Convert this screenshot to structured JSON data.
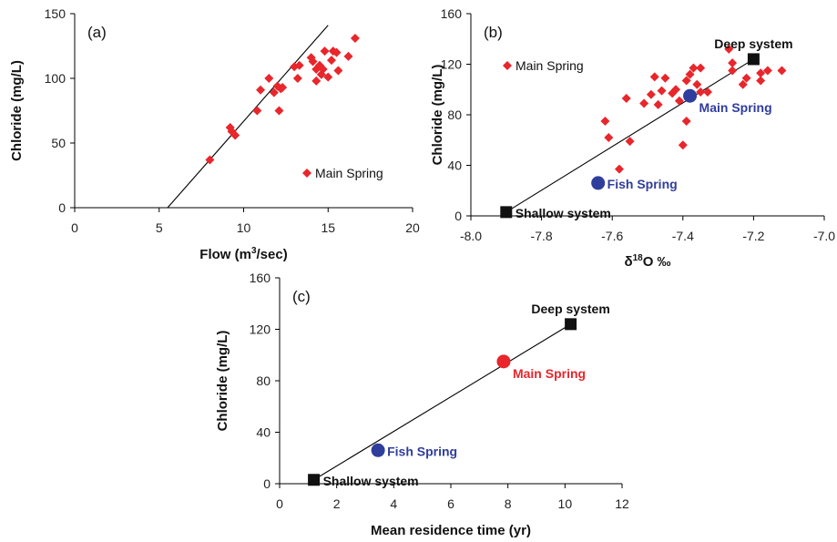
{
  "colors": {
    "red": "#e8262b",
    "blue": "#2f3d9c",
    "black": "#111111"
  },
  "chart_data": [
    {
      "id": "a",
      "type": "scatter",
      "panel_label": "(a)",
      "xlabel_base": "Flow (m",
      "xlabel_sup": "3",
      "xlabel_end": "/sec)",
      "ylabel": "Chloride (mg/L)",
      "xlim": [
        0,
        20
      ],
      "ylim": [
        0,
        150
      ],
      "xticks": [
        0,
        5,
        10,
        15,
        20
      ],
      "yticks": [
        0,
        50,
        100,
        150
      ],
      "grid": false,
      "legend": {
        "label": "Main Spring",
        "position": "lower-right"
      },
      "series": [
        {
          "name": "Main Spring",
          "marker": "diamond",
          "color": "#e8262b",
          "points": [
            [
              8.0,
              37
            ],
            [
              9.2,
              62
            ],
            [
              9.3,
              59
            ],
            [
              9.5,
              56
            ],
            [
              10.8,
              75
            ],
            [
              11.0,
              91
            ],
            [
              11.5,
              100
            ],
            [
              11.8,
              89
            ],
            [
              12.0,
              94
            ],
            [
              12.1,
              75
            ],
            [
              12.2,
              92
            ],
            [
              12.3,
              93
            ],
            [
              13.0,
              109
            ],
            [
              13.2,
              100
            ],
            [
              13.3,
              110
            ],
            [
              14.0,
              116
            ],
            [
              14.1,
              113
            ],
            [
              14.3,
              107
            ],
            [
              14.3,
              98
            ],
            [
              14.5,
              110
            ],
            [
              14.6,
              103
            ],
            [
              14.7,
              107
            ],
            [
              14.8,
              121
            ],
            [
              15.0,
              101
            ],
            [
              15.2,
              114
            ],
            [
              15.3,
              121
            ],
            [
              15.5,
              120
            ],
            [
              15.6,
              106
            ],
            [
              16.2,
              117
            ],
            [
              16.6,
              131
            ]
          ]
        }
      ],
      "fit_line": [
        [
          5.5,
          0
        ],
        [
          15.0,
          141
        ]
      ]
    },
    {
      "id": "b",
      "type": "scatter",
      "panel_label": "(b)",
      "xlabel_pre": "δ",
      "xlabel_sup": "18",
      "xlabel_end": "O ‰",
      "ylabel": "Chloride (mg/L)",
      "xlim": [
        -8.0,
        -7.0
      ],
      "ylim": [
        0,
        160
      ],
      "xticks": [
        "-8.0",
        "-7.8",
        "-7.6",
        "-7.4",
        "-7.2",
        "-7.0"
      ],
      "xtick_values": [
        -8.0,
        -7.8,
        -7.6,
        -7.4,
        -7.2,
        -7.0
      ],
      "yticks": [
        0,
        40,
        80,
        120,
        160
      ],
      "grid": false,
      "legend": {
        "label": "Main Spring",
        "position": "top-left"
      },
      "series": [
        {
          "name": "Main Spring",
          "marker": "diamond",
          "color": "#e8262b",
          "points": [
            [
              -7.58,
              37
            ],
            [
              -7.62,
              75
            ],
            [
              -7.61,
              62
            ],
            [
              -7.55,
              59
            ],
            [
              -7.56,
              93
            ],
            [
              -7.51,
              89
            ],
            [
              -7.49,
              96
            ],
            [
              -7.48,
              110
            ],
            [
              -7.47,
              88
            ],
            [
              -7.46,
              99
            ],
            [
              -7.45,
              109
            ],
            [
              -7.43,
              97
            ],
            [
              -7.42,
              100
            ],
            [
              -7.41,
              91
            ],
            [
              -7.4,
              56
            ],
            [
              -7.39,
              75
            ],
            [
              -7.39,
              107
            ],
            [
              -7.38,
              112
            ],
            [
              -7.37,
              117
            ],
            [
              -7.36,
              104
            ],
            [
              -7.35,
              117
            ],
            [
              -7.35,
              98
            ],
            [
              -7.33,
              98
            ],
            [
              -7.27,
              132
            ],
            [
              -7.26,
              121
            ],
            [
              -7.26,
              115
            ],
            [
              -7.23,
              104
            ],
            [
              -7.22,
              109
            ],
            [
              -7.18,
              113
            ],
            [
              -7.18,
              107
            ],
            [
              -7.16,
              115
            ],
            [
              -7.12,
              115
            ]
          ]
        }
      ],
      "special_points": [
        {
          "label": "Deep system",
          "x": -7.2,
          "y": 124,
          "marker": "square",
          "color": "#111111",
          "label_pos": "above"
        },
        {
          "label": "Main Spring",
          "x": -7.38,
          "y": 95,
          "marker": "circle",
          "color": "#2f3d9c",
          "label_pos": "right-below"
        },
        {
          "label": "Fish Spring",
          "x": -7.64,
          "y": 26,
          "marker": "circle",
          "color": "#2f3d9c",
          "label_pos": "right"
        },
        {
          "label": "Shallow system",
          "x": -7.9,
          "y": 3,
          "marker": "square",
          "color": "#111111",
          "label_pos": "right"
        }
      ],
      "fit_line": [
        [
          -7.9,
          3
        ],
        [
          -7.2,
          124
        ]
      ]
    },
    {
      "id": "c",
      "type": "scatter",
      "panel_label": "(c)",
      "xlabel": "Mean residence time (yr)",
      "ylabel": "Chloride (mg/L)",
      "xlim": [
        0,
        12
      ],
      "ylim": [
        0,
        160
      ],
      "xticks": [
        0,
        2,
        4,
        6,
        8,
        10,
        12
      ],
      "yticks": [
        0,
        40,
        80,
        120,
        160
      ],
      "grid": false,
      "special_points": [
        {
          "label": "Deep system",
          "x": 10.2,
          "y": 124,
          "marker": "square",
          "color": "#111111",
          "label_pos": "above"
        },
        {
          "label": "Main Spring",
          "x": 7.85,
          "y": 95,
          "marker": "circle",
          "color": "#e8262b",
          "label_pos": "right-below"
        },
        {
          "label": "Fish Spring",
          "x": 3.45,
          "y": 26,
          "marker": "circle",
          "color": "#2f3d9c",
          "label_pos": "right"
        },
        {
          "label": "Shallow system",
          "x": 1.2,
          "y": 3,
          "marker": "square",
          "color": "#111111",
          "label_pos": "right"
        }
      ],
      "fit_line": [
        [
          1.2,
          3
        ],
        [
          10.2,
          124
        ]
      ]
    }
  ]
}
